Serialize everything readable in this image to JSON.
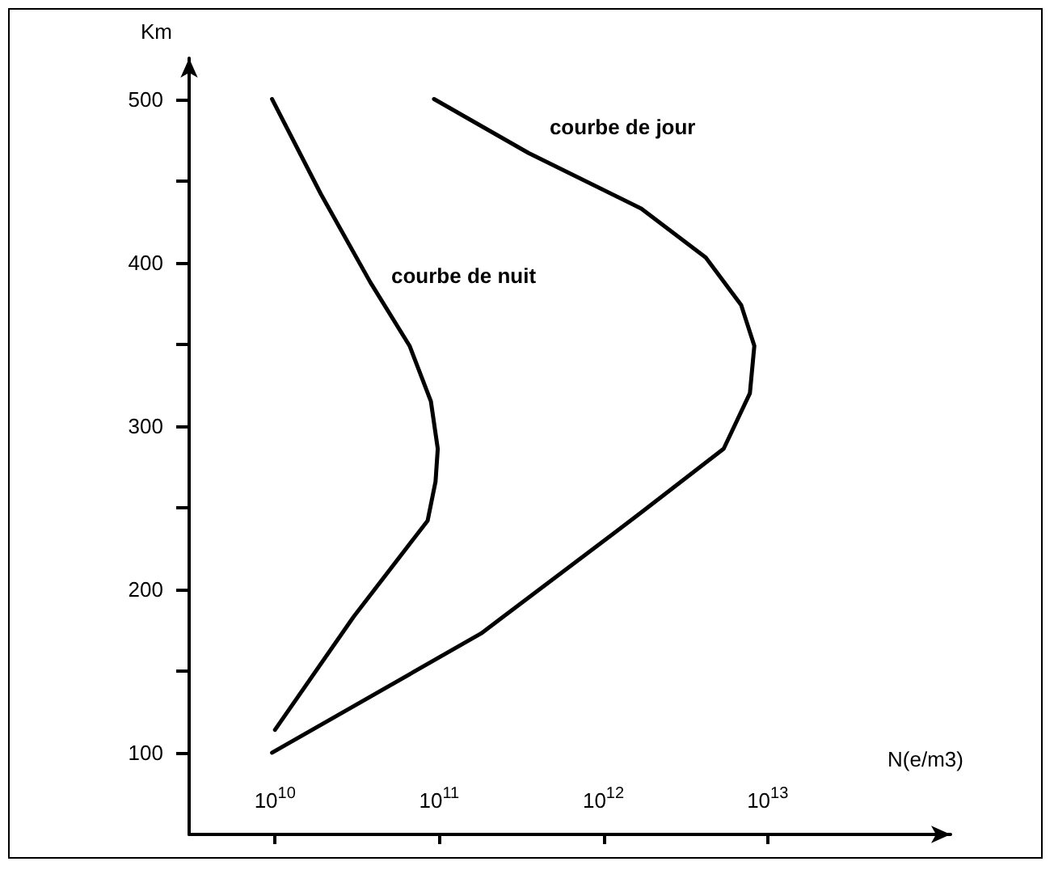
{
  "chart_data": {
    "type": "line",
    "xlabel": "N(e/m3)",
    "ylabel": "Km",
    "log": "x",
    "grid": false,
    "legend": false,
    "marker": "none",
    "line_style": "solid",
    "xlim": [
      3000000000,
      130000000000000
    ],
    "ylim": [
      50,
      525
    ],
    "xticks": [
      {
        "value": 10000000000,
        "label": "10$^{10}$"
      },
      {
        "value": 100000000000,
        "label": "10$^{11}$"
      },
      {
        "value": 1000000000000,
        "label": "10$^{12}$"
      },
      {
        "value": 10000000000000,
        "label": "10$^{13}$"
      }
    ],
    "yticks": [
      100,
      {
        "value": 150,
        "label": null
      },
      200,
      {
        "value": 250,
        "label": null
      },
      300,
      {
        "value": 350,
        "label": null
      },
      400,
      {
        "value": 450,
        "label": null
      },
      500
    ],
    "series": [
      {
        "name": "courbe de nuit",
        "color": "#000000",
        "x": [
          9600000000,
          19000000000,
          38000000000,
          66000000000,
          89000000000,
          98000000000,
          95000000000,
          85000000000,
          30000000000,
          10000000000
        ],
        "values": [
          500,
          442,
          388,
          349,
          315,
          286,
          266,
          242,
          183,
          114
        ]
      },
      {
        "name": "courbe de jour",
        "color": "#000000",
        "x": [
          93000000000,
          350000000000,
          1700000000000,
          4200000000000,
          6900000000000,
          8300000000000,
          7800000000000,
          5400000000000,
          1700000000000,
          180000000000,
          9600000000
        ],
        "values": [
          500,
          467,
          433,
          403,
          374,
          349,
          320,
          286,
          247,
          173,
          100
        ]
      }
    ]
  }
}
